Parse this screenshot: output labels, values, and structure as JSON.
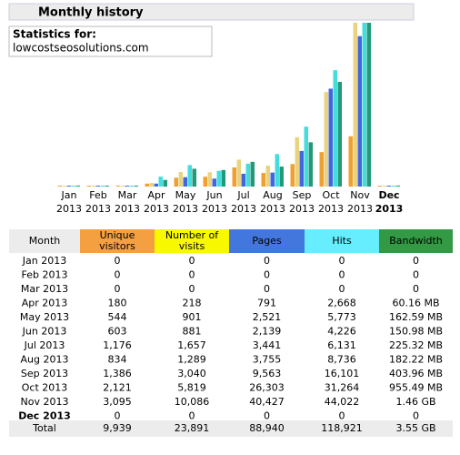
{
  "header": {
    "title": "Monthly history"
  },
  "stats_box": {
    "label": "Statistics for:",
    "site": "lowcostseosolutions.com"
  },
  "chart": {
    "labels": [
      [
        "Jan",
        "2013"
      ],
      [
        "Feb",
        "2013"
      ],
      [
        "Mar",
        "2013"
      ],
      [
        "Apr",
        "2013"
      ],
      [
        "May",
        "2013"
      ],
      [
        "Jun",
        "2013"
      ],
      [
        "Jul",
        "2013"
      ],
      [
        "Aug",
        "2013"
      ],
      [
        "Sep",
        "2013"
      ],
      [
        "Oct",
        "2013"
      ],
      [
        "Nov",
        "2013"
      ],
      [
        "Dec",
        "2013"
      ]
    ]
  },
  "table": {
    "columns": [
      "Month",
      "Unique visitors",
      "Number of visits",
      "Pages",
      "Hits",
      "Bandwidth"
    ],
    "rows": [
      [
        "Jan 2013",
        "0",
        "0",
        "0",
        "0",
        "0"
      ],
      [
        "Feb 2013",
        "0",
        "0",
        "0",
        "0",
        "0"
      ],
      [
        "Mar 2013",
        "0",
        "0",
        "0",
        "0",
        "0"
      ],
      [
        "Apr 2013",
        "180",
        "218",
        "791",
        "2,668",
        "60.16 MB"
      ],
      [
        "May 2013",
        "544",
        "901",
        "2,521",
        "5,773",
        "162.59 MB"
      ],
      [
        "Jun 2013",
        "603",
        "881",
        "2,139",
        "4,226",
        "150.98 MB"
      ],
      [
        "Jul 2013",
        "1,176",
        "1,657",
        "3,441",
        "6,131",
        "225.32 MB"
      ],
      [
        "Aug 2013",
        "834",
        "1,289",
        "3,755",
        "8,736",
        "182.22 MB"
      ],
      [
        "Sep 2013",
        "1,386",
        "3,040",
        "9,563",
        "16,101",
        "403.96 MB"
      ],
      [
        "Oct 2013",
        "2,121",
        "5,819",
        "26,303",
        "31,264",
        "955.49 MB"
      ],
      [
        "Nov 2013",
        "3,095",
        "10,086",
        "40,427",
        "44,022",
        "1.46 GB"
      ],
      [
        "Dec 2013",
        "0",
        "0",
        "0",
        "0",
        "0"
      ]
    ],
    "total": [
      "Total",
      "9,939",
      "23,891",
      "88,940",
      "118,921",
      "3.55 GB"
    ]
  }
}
